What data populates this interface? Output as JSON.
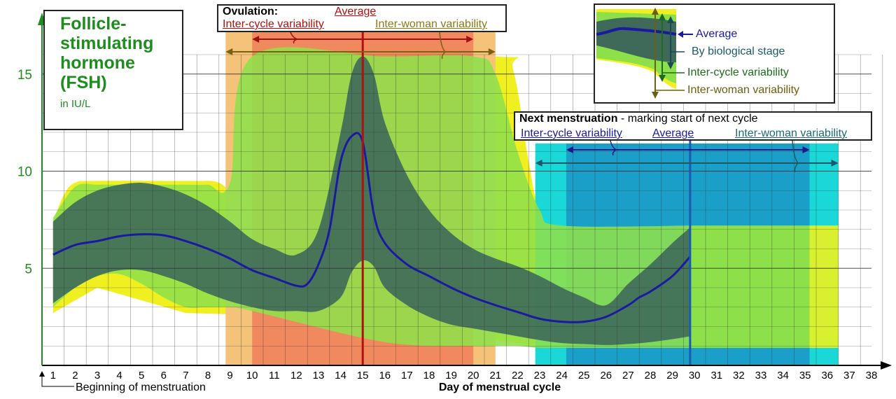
{
  "title": {
    "text": "Follicle-\nstimulating\nhormone\n(FSH)",
    "unit": "in IU/L"
  },
  "ovulation": {
    "heading": "Ovulation:",
    "average": "Average",
    "inter_cycle": "Inter-cycle variability",
    "inter_woman": "Inter-woman variability"
  },
  "next_menstruation": {
    "heading": "Next menstruation",
    "rest": " - marking start of next cycle",
    "inter_cycle": "Inter-cycle variability",
    "average": "Average",
    "inter_woman": "Inter-woman variability"
  },
  "legend": {
    "average": "Average",
    "by_stage": "By biological stage",
    "inter_cycle": "Inter-cycle variability",
    "inter_woman": "Inter-woman variability"
  },
  "colors": {
    "average": "#1a1aa0",
    "by_stage": "#3f6a5a",
    "inter_cycle": "#8ee04a",
    "inter_woman": "#f0f020",
    "ovulation_line": "#b01010",
    "ovulation_inter_cycle": "#f08a5e",
    "ovulation_inter_woman": "#f5c27a",
    "menstruation_inter_cycle": "#1aa0c8",
    "menstruation_inter_woman": "#1ad8d8",
    "title_text": "#1e8c1e"
  },
  "chart_data": {
    "type": "area",
    "title": "Follicle-stimulating hormone (FSH)",
    "ylabel": "in IU/L",
    "xlabel": "Day of menstrual cycle",
    "x_start_label": "Beginning of menstruation",
    "xlim": [
      1,
      38
    ],
    "ylim": [
      0,
      16
    ],
    "x_ticks": [
      1,
      2,
      3,
      4,
      5,
      6,
      7,
      8,
      9,
      10,
      11,
      12,
      13,
      14,
      15,
      16,
      17,
      18,
      19,
      20,
      21,
      22,
      23,
      24,
      25,
      26,
      27,
      28,
      29,
      30,
      31,
      32,
      33,
      34,
      35,
      36,
      37,
      38
    ],
    "y_ticks": [
      5,
      10,
      15
    ],
    "grid": true,
    "series": [
      {
        "name": "Average",
        "x": [
          1,
          2,
          3,
          4,
          5,
          6,
          7,
          8,
          9,
          10,
          11,
          12,
          12.5,
          13,
          13.5,
          14,
          14.5,
          15,
          15.5,
          16,
          17,
          18,
          19,
          20,
          21,
          22,
          23,
          24,
          25,
          26,
          27,
          27.5,
          28,
          29,
          29.8
        ],
        "y": [
          5.7,
          6.2,
          6.4,
          6.65,
          6.75,
          6.7,
          6.4,
          6.0,
          5.5,
          4.9,
          4.5,
          4.1,
          4.2,
          5.2,
          7.0,
          10.5,
          11.8,
          11.5,
          7.8,
          6.3,
          5.2,
          4.6,
          4.0,
          3.5,
          3.1,
          2.75,
          2.4,
          2.25,
          2.25,
          2.5,
          3.1,
          3.5,
          3.8,
          4.6,
          5.6
        ]
      },
      {
        "name": "By biological stage",
        "x": [
          1,
          2,
          3,
          4,
          5,
          6,
          7,
          8,
          9,
          10,
          11,
          12,
          13,
          14,
          14.5,
          15,
          15.5,
          16,
          17,
          18,
          19,
          20,
          21,
          22,
          23,
          24,
          25,
          26,
          27,
          28,
          29,
          29.8
        ],
        "upper": [
          7.4,
          8.4,
          9.0,
          9.3,
          9.4,
          9.2,
          8.8,
          8.2,
          7.4,
          6.5,
          6.0,
          5.7,
          7.0,
          12.0,
          15.0,
          15.9,
          15.0,
          12.5,
          9.8,
          8.0,
          6.8,
          6.0,
          5.5,
          5.1,
          4.6,
          4.0,
          3.5,
          3.1,
          4.2,
          5.2,
          6.3,
          7.1
        ],
        "lower": [
          3.2,
          4.0,
          4.6,
          4.9,
          4.9,
          4.6,
          4.2,
          3.7,
          3.3,
          3.0,
          2.8,
          2.8,
          2.8,
          3.5,
          4.8,
          5.4,
          5.1,
          4.0,
          3.1,
          2.5,
          2.1,
          1.9,
          1.7,
          1.5,
          1.3,
          1.15,
          1.1,
          1.05,
          1.1,
          1.2,
          1.35,
          1.5
        ]
      },
      {
        "name": "Inter-cycle variability",
        "x": [
          1,
          2,
          3,
          4,
          5,
          6,
          7,
          8,
          9,
          10,
          16,
          20,
          21,
          22,
          23,
          24,
          29.8
        ],
        "upper": [
          7.6,
          9.2,
          9.3,
          9.3,
          9.3,
          9.3,
          9.3,
          9.3,
          9.4,
          15.9,
          15.9,
          15.9,
          15.0,
          11.0,
          8.0,
          7.2,
          7.2
        ],
        "lower": [
          3.0,
          4.0,
          4.6,
          4.7,
          4.2,
          3.5,
          3.0,
          3.0,
          3.0,
          2.8,
          1.2,
          1.0,
          1.0,
          1.0,
          0.9,
          0.9,
          0.9
        ]
      },
      {
        "name": "Inter-woman variability",
        "x": [
          1,
          1.5,
          2,
          3,
          8,
          9,
          9.2,
          10,
          21,
          21.8,
          22.5,
          23,
          24
        ],
        "upper": [
          7.4,
          8.8,
          9.4,
          9.5,
          9.5,
          9.6,
          15.7,
          15.9,
          15.9,
          15.2,
          10.5,
          8.0,
          7.2
        ]
      }
    ],
    "ovulation": {
      "average_day": 15.0,
      "inter_cycle_days": [
        10,
        20
      ],
      "inter_woman_days": [
        8.8,
        21.0
      ]
    },
    "next_menstruation": {
      "average_day": 29.8,
      "inter_cycle_days": [
        24.2,
        35.2
      ],
      "inter_woman_days": [
        22.8,
        36.5
      ]
    }
  }
}
